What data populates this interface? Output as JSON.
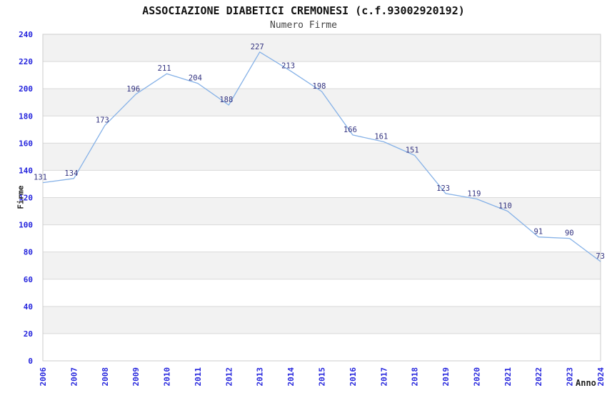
{
  "chart_data": {
    "type": "line",
    "title": "ASSOCIAZIONE DIABETICI CREMONESI (c.f.93002920192)",
    "subtitle": "Numero Firme",
    "xlabel": "Anno",
    "ylabel": "Firme",
    "categories": [
      "2006",
      "2007",
      "2008",
      "2009",
      "2010",
      "2011",
      "2012",
      "2013",
      "2014",
      "2015",
      "2016",
      "2017",
      "2018",
      "2019",
      "2020",
      "2021",
      "2022",
      "2023",
      "2024"
    ],
    "values": [
      131,
      134,
      173,
      196,
      211,
      204,
      188,
      227,
      213,
      198,
      166,
      161,
      151,
      123,
      119,
      110,
      91,
      90,
      73
    ],
    "ylim": [
      0,
      240
    ],
    "ytick_step": 20,
    "grid": "horizontal",
    "banded_background": true,
    "legend": "none",
    "markers": "none",
    "x_tick_rotation": -90,
    "colors": {
      "line": "#85b1e7",
      "band": "#f2f2f2",
      "band_alt": "#ffffff",
      "grid": "#d9d9d9",
      "border": "#cccccc",
      "tick_label": "#2525dd",
      "value_label": "#333380",
      "title": "#111111",
      "subtitle": "#444444",
      "axis_title": "#222222",
      "background": "#ffffff"
    }
  }
}
